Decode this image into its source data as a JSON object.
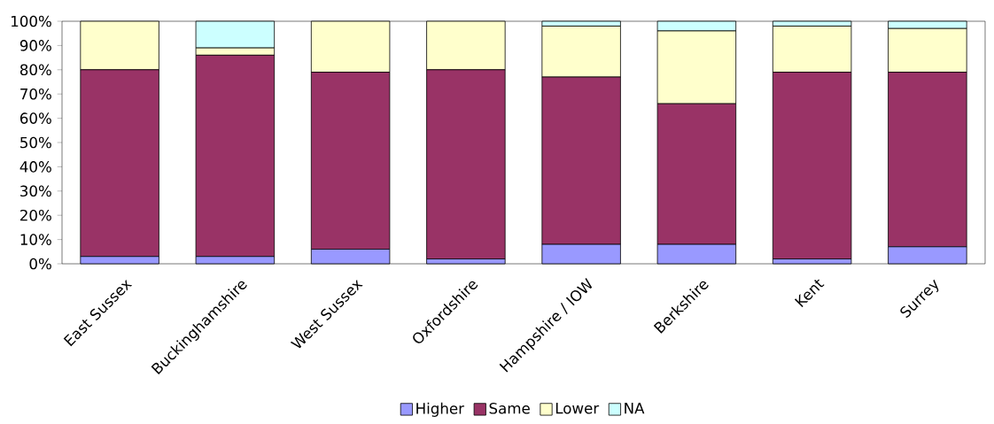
{
  "chart_data": {
    "type": "bar",
    "stacked": true,
    "legend": "bottom",
    "grid": false,
    "categories": [
      "East Sussex",
      "Buckinghamshire",
      "West Sussex",
      "Oxfordshire",
      "Hampshire / IOW",
      "Berkshire",
      "Kent",
      "Surrey"
    ],
    "series": [
      {
        "name": "Higher",
        "color": "#9999ff",
        "values": [
          3,
          3,
          6,
          2,
          8,
          8,
          2,
          7
        ]
      },
      {
        "name": "Same",
        "color": "#993366",
        "values": [
          77,
          83,
          73,
          78,
          69,
          58,
          77,
          72
        ]
      },
      {
        "name": "Lower",
        "color": "#ffffcc",
        "values": [
          20,
          3,
          21,
          20,
          21,
          30,
          19,
          18
        ]
      },
      {
        "name": "NA",
        "color": "#ccffff",
        "values": [
          0,
          11,
          0,
          0,
          2,
          4,
          2,
          3
        ]
      }
    ],
    "ylim": [
      0,
      100
    ],
    "yticks": [
      {
        "value": 0,
        "label": "0%"
      },
      {
        "value": 10,
        "label": "10%"
      },
      {
        "value": 20,
        "label": "20%"
      },
      {
        "value": 30,
        "label": "30%"
      },
      {
        "value": 40,
        "label": "40%"
      },
      {
        "value": 50,
        "label": "50%"
      },
      {
        "value": 60,
        "label": "60%"
      },
      {
        "value": 70,
        "label": "70%"
      },
      {
        "value": 80,
        "label": "80%"
      },
      {
        "value": 90,
        "label": "90%"
      },
      {
        "value": 100,
        "label": "100%"
      }
    ]
  }
}
